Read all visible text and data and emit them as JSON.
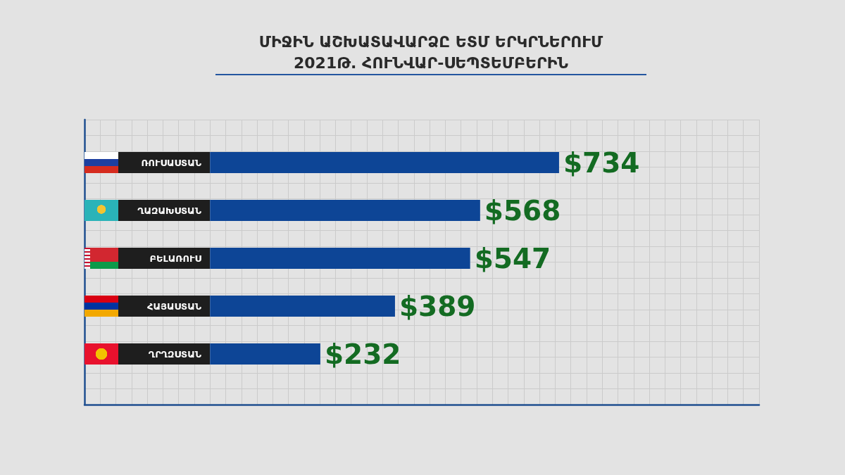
{
  "chart_data": {
    "type": "bar",
    "orientation": "horizontal",
    "title": "ՄԻՋԻՆ ԱՇԽԱՏԱՎԱՐՁԸ ԵՏՄ ԵՐԿՐՆԵՐՈՒՄ",
    "subtitle": "2021Թ. ՀՈՒՆՎԱՐ-ՍԵՊՏԵՄԲԵՐԻՆ",
    "categories": [
      "ՌՈՒՍԱՍՏԱՆ",
      "ՂԱԶԱԽՍՏԱՆ",
      "ԲԵԼԱՌՈՒՍ",
      "ՀԱՅԱՍՏԱՆ",
      "ՂՐՂԶՍՏԱՆ"
    ],
    "values": [
      734,
      568,
      547,
      389,
      232
    ],
    "value_labels": [
      "$734",
      "$568",
      "$547",
      "$389",
      "$232"
    ],
    "color": "#0d4596",
    "grid": true
  }
}
